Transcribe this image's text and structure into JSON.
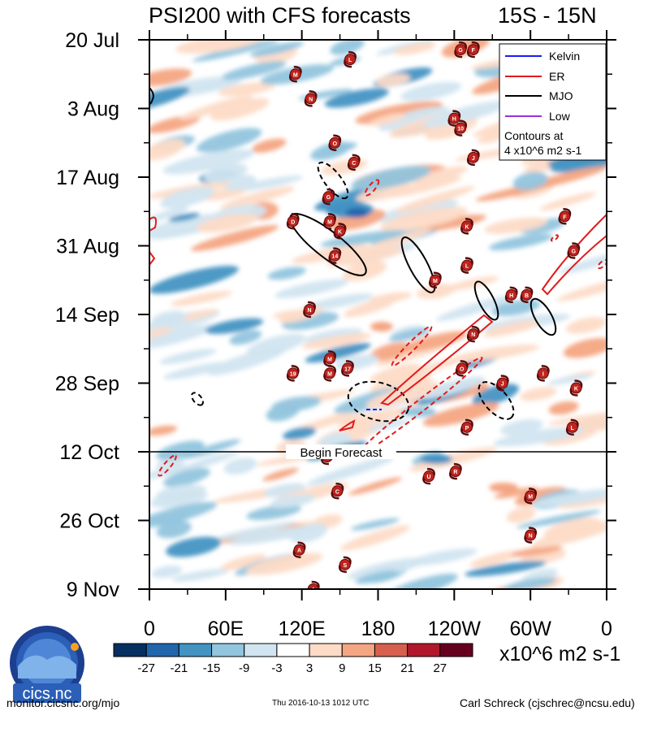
{
  "chart_data": {
    "type": "heatmap",
    "title": "PSI200 with CFS forecasts",
    "region": "15S - 15N",
    "ylabel": "",
    "xlabel": "",
    "y_ticks": [
      "20 Jul",
      "3 Aug",
      "17 Aug",
      "31 Aug",
      "14 Sep",
      "28 Sep",
      "12 Oct",
      "26 Oct",
      "9 Nov"
    ],
    "x_ticks": [
      "0",
      "60E",
      "120E",
      "180",
      "120W",
      "60W",
      "0"
    ],
    "xlim": [
      0,
      360
    ],
    "forecast_start": "12 Oct",
    "forecast_label": "Begin Forecast",
    "colorbar": {
      "labels": [
        "-27",
        "-21",
        "-15",
        "-9",
        "-3",
        "3",
        "9",
        "15",
        "21",
        "27"
      ],
      "colors": [
        "#053061",
        "#2166ac",
        "#4393c3",
        "#92c5de",
        "#d1e5f0",
        "#ffffff",
        "#fddbc7",
        "#f4a582",
        "#d6604d",
        "#b2182b",
        "#67001f"
      ],
      "units": "x10^6 m2 s-1"
    },
    "legend": {
      "entries": [
        {
          "name": "Kelvin",
          "color": "#1a1aff"
        },
        {
          "name": "ER",
          "color": "#e31a1c"
        },
        {
          "name": "MJO",
          "color": "#000000"
        },
        {
          "name": "Low",
          "color": "#9b30d9"
        }
      ],
      "note_line1": "Contours at",
      "note_line2": "4 x10^6 m2 s-1",
      "position": "top-right"
    },
    "storm_markers": [
      {
        "label": "G",
        "lon": 245,
        "day": 2
      },
      {
        "label": "F",
        "lon": 255,
        "day": 2
      },
      {
        "label": "M",
        "lon": 115,
        "day": 7
      },
      {
        "label": "L",
        "lon": 158,
        "day": 4
      },
      {
        "label": "N",
        "lon": 127,
        "day": 12
      },
      {
        "label": "H",
        "lon": 240,
        "day": 16
      },
      {
        "label": "10",
        "lon": 245,
        "day": 18
      },
      {
        "label": "O",
        "lon": 146,
        "day": 21
      },
      {
        "label": "J",
        "lon": 255,
        "day": 24
      },
      {
        "label": "C",
        "lon": 161,
        "day": 25
      },
      {
        "label": "G",
        "lon": 141,
        "day": 32
      },
      {
        "label": "M",
        "lon": 142,
        "day": 37
      },
      {
        "label": "D",
        "lon": 113,
        "day": 37
      },
      {
        "label": "K",
        "lon": 150,
        "day": 39
      },
      {
        "label": "14",
        "lon": 146,
        "day": 44
      },
      {
        "label": "K",
        "lon": 250,
        "day": 38
      },
      {
        "label": "F",
        "lon": 327,
        "day": 36
      },
      {
        "label": "G",
        "lon": 334,
        "day": 43
      },
      {
        "label": "L",
        "lon": 250,
        "day": 46
      },
      {
        "label": "M",
        "lon": 225,
        "day": 49
      },
      {
        "label": "H",
        "lon": 285,
        "day": 52
      },
      {
        "label": "B",
        "lon": 297,
        "day": 52
      },
      {
        "label": "N",
        "lon": 126,
        "day": 55
      },
      {
        "label": "N",
        "lon": 255,
        "day": 60
      },
      {
        "label": "M",
        "lon": 142,
        "day": 65
      },
      {
        "label": "19",
        "lon": 113,
        "day": 68
      },
      {
        "label": "M",
        "lon": 142,
        "day": 68
      },
      {
        "label": "17",
        "lon": 156,
        "day": 67
      },
      {
        "label": "O",
        "lon": 246,
        "day": 67
      },
      {
        "label": "J",
        "lon": 278,
        "day": 70
      },
      {
        "label": "I",
        "lon": 310,
        "day": 68
      },
      {
        "label": "K",
        "lon": 336,
        "day": 71
      },
      {
        "label": "P",
        "lon": 250,
        "day": 79
      },
      {
        "label": "L",
        "lon": 333,
        "day": 79
      },
      {
        "label": "M",
        "lon": 140,
        "day": 85
      },
      {
        "label": "R",
        "lon": 241,
        "day": 88
      },
      {
        "label": "U",
        "lon": 220,
        "day": 89
      },
      {
        "label": "C",
        "lon": 148,
        "day": 92
      },
      {
        "label": "M",
        "lon": 300,
        "day": 93
      },
      {
        "label": "A",
        "lon": 118,
        "day": 104
      },
      {
        "label": "N",
        "lon": 300,
        "day": 101
      },
      {
        "label": "S",
        "lon": 154,
        "day": 107
      },
      {
        "label": "A",
        "lon": 129,
        "day": 112
      }
    ]
  },
  "footer": {
    "logo_text": "cics.nc",
    "left": "monitor.cicsnc.org/mjo",
    "center": "Thu 2016-10-13 1012 UTC",
    "right": "Carl Schreck (cjschrec@ncsu.edu)"
  }
}
